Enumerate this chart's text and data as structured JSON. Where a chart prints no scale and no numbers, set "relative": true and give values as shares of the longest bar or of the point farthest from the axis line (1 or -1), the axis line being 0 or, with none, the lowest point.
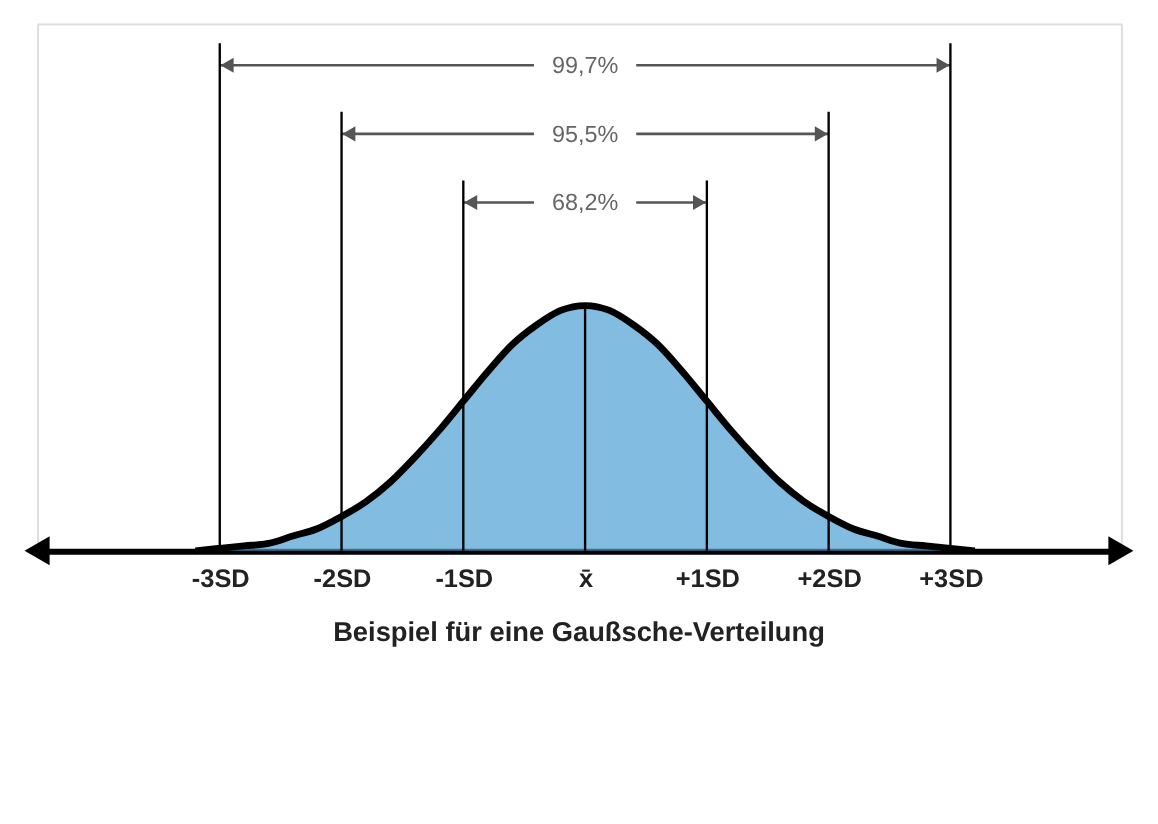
{
  "chart_data": {
    "type": "area",
    "relative": true,
    "x": [
      -3.2,
      -3.0,
      -2.8,
      -2.6,
      -2.4,
      -2.2,
      -2.0,
      -1.8,
      -1.6,
      -1.4,
      -1.2,
      -1.0,
      -0.8,
      -0.6,
      -0.4,
      -0.2,
      0,
      0.2,
      0.4,
      0.6,
      0.8,
      1.0,
      1.2,
      1.4,
      1.6,
      1.8,
      2.0,
      2.2,
      2.4,
      2.6,
      2.8,
      3.0,
      3.2
    ],
    "series": [
      {
        "color": "#4f9fd4",
        "values": [
          0,
          0.01,
          0.02,
          0.03,
          0.06,
          0.09,
          0.14,
          0.2,
          0.28,
          0.38,
          0.49,
          0.61,
          0.73,
          0.84,
          0.92,
          0.98,
          1,
          0.98,
          0.92,
          0.84,
          0.73,
          0.61,
          0.49,
          0.38,
          0.28,
          0.2,
          0.14,
          0.09,
          0.06,
          0.03,
          0.02,
          0.01,
          0
        ]
      }
    ],
    "xlim": [
      -4.5,
      4.4
    ],
    "xticks": [
      {
        "value": -3,
        "label": "-3SD"
      },
      {
        "value": -2,
        "label": "-2SD"
      },
      {
        "value": -1,
        "label": "-1SD"
      },
      {
        "value": 0,
        "label": "x̄"
      },
      {
        "value": 1,
        "label": "+1SD"
      },
      {
        "value": 2,
        "label": "+2SD"
      },
      {
        "value": 3,
        "label": "+3SD"
      }
    ],
    "ref_lines": [
      {
        "axis": "x",
        "value": -3,
        "color": "#000000"
      },
      {
        "axis": "x",
        "value": -2,
        "color": "#000000"
      },
      {
        "axis": "x",
        "value": -1,
        "color": "#000000"
      },
      {
        "axis": "x",
        "value": 0,
        "color": "#000000"
      },
      {
        "axis": "x",
        "value": 1,
        "color": "#000000"
      },
      {
        "axis": "x",
        "value": 2,
        "color": "#000000"
      },
      {
        "axis": "x",
        "value": 3,
        "color": "#000000"
      }
    ],
    "annotations": [
      "99,7%",
      "95,5%",
      "68,2%"
    ],
    "title": "Beispiel für eine Gaußsche-Verteilung",
    "grid": false
  }
}
